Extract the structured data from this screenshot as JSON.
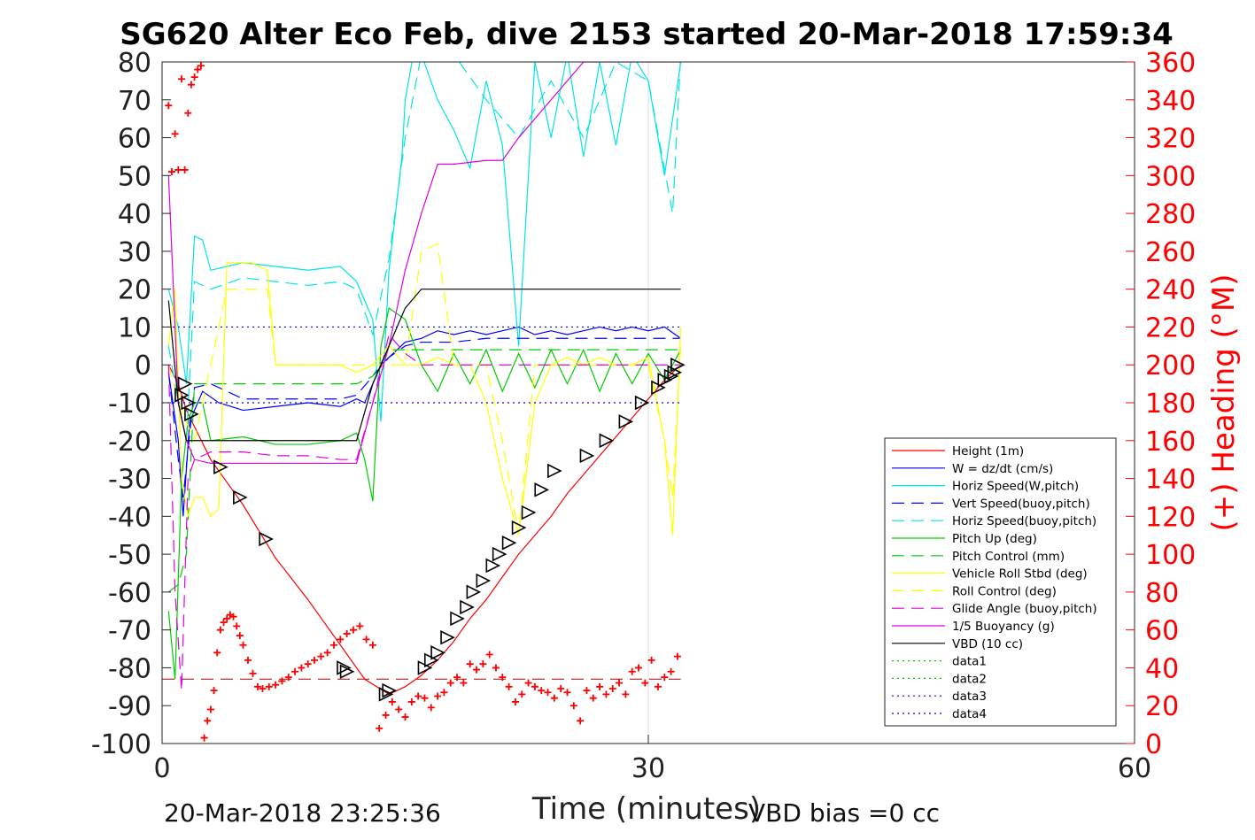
{
  "chart_data": {
    "type": "line",
    "title": "SG620 Alter Eco Feb, dive 2153 started 20-Mar-2018 17:59:34",
    "xlabel": "Time (minutes)",
    "ylabel": "",
    "y2label": "(+) Heading (°M)",
    "xlim": [
      0,
      60
    ],
    "ylim": [
      -100,
      80
    ],
    "y2lim": [
      0,
      360
    ],
    "x_ticks": [
      "0",
      "30",
      "60"
    ],
    "y_ticks": [
      "80",
      "70",
      "60",
      "50",
      "40",
      "30",
      "20",
      "10",
      "0",
      "-10",
      "-20",
      "-30",
      "-40",
      "-50",
      "-60",
      "-70",
      "-80",
      "-90",
      "-100"
    ],
    "y2_ticks": [
      "360",
      "340",
      "320",
      "300",
      "280",
      "260",
      "240",
      "220",
      "200",
      "180",
      "160",
      "140",
      "120",
      "100",
      "80",
      "60",
      "40",
      "20",
      "0"
    ],
    "grid": "x at 30",
    "legend_position": "lower-right",
    "footer_left": "20-Mar-2018 23:25:36",
    "footer_right": "VBD bias =0 cc",
    "series": [
      {
        "name": "Height (1m)",
        "color": "#ff0000",
        "style": "solid",
        "x": [
          0.4,
          1.0,
          1.5,
          3.0,
          5.0,
          7.0,
          9.0,
          11.0,
          12.5,
          14.0,
          15.0,
          16.0,
          17.0,
          18.0,
          19.0,
          20.0,
          21.0,
          22.0,
          23.0,
          24.0,
          25.0,
          26.0,
          27.0,
          28.0,
          29.0,
          30.0,
          31.0,
          32.0
        ],
        "y": [
          0,
          -5,
          -12,
          -25,
          -37,
          -51,
          -62,
          -74,
          -83,
          -87,
          -85,
          -82,
          -78,
          -73,
          -67,
          -62,
          -56,
          -50,
          -45,
          -40,
          -34,
          -29,
          -24,
          -19,
          -14,
          -9,
          -4,
          0
        ]
      },
      {
        "name": "W = dz/dt (cm/s)",
        "color": "#0000ff",
        "style": "solid",
        "x": [
          0.4,
          1.0,
          1.3,
          1.7,
          2.5,
          3.5,
          5,
          7,
          9,
          11,
          12,
          12.5,
          13,
          13.5,
          14,
          15,
          16,
          17,
          18,
          19,
          20,
          21,
          22,
          23,
          24,
          25,
          26,
          27,
          28,
          29,
          30,
          31,
          32
        ],
        "y": [
          -2,
          -20,
          -40,
          -15,
          -7,
          -10,
          -12,
          -11,
          -10,
          -11,
          -9,
          -10,
          -5,
          0,
          2,
          6,
          7,
          9,
          8,
          9,
          8,
          9,
          10,
          8,
          9,
          8,
          9,
          10,
          9,
          10,
          9,
          10,
          7
        ]
      },
      {
        "name": "Horiz Speed(W,pitch)",
        "color": "#00e5e5",
        "style": "solid",
        "x": [
          0.4,
          1.0,
          1.5,
          2.0,
          2.5,
          3.0,
          4.0,
          5.0,
          7,
          9,
          11,
          12,
          13,
          13.5,
          14,
          14.8,
          15,
          15.5,
          16,
          17,
          18,
          19,
          20,
          21,
          22,
          23,
          24,
          25,
          26,
          27,
          28,
          29,
          30,
          31,
          32
        ],
        "y": [
          20,
          10,
          -5,
          34,
          33,
          25,
          26,
          27,
          26,
          25,
          26,
          22,
          12,
          -15,
          25,
          55,
          70,
          82,
          82,
          70,
          62,
          52,
          75,
          58,
          5,
          80,
          60,
          82,
          55,
          80,
          58,
          82,
          75,
          50,
          80
        ]
      },
      {
        "name": "Vert Speed(buoy,pitch)",
        "color": "#0000ff",
        "style": "dashed",
        "x": [
          0.4,
          1.0,
          1.3,
          2.0,
          3.0,
          5,
          7,
          9,
          11,
          12,
          13,
          14,
          15,
          16,
          18,
          20,
          22,
          24,
          26,
          28,
          30,
          32
        ],
        "y": [
          -2,
          -25,
          -35,
          -6,
          -5,
          -9,
          -9,
          -9,
          -9,
          -8,
          -3,
          2,
          5,
          6,
          6,
          7,
          7,
          7,
          7,
          7,
          7,
          7
        ]
      },
      {
        "name": "Horiz Speed(buoy,pitch)",
        "color": "#00e5e5",
        "style": "dashed",
        "x": [
          0.4,
          1.0,
          1.5,
          2.0,
          3.0,
          5,
          7,
          9,
          11,
          12,
          13,
          14,
          15,
          16,
          18,
          20,
          22,
          24,
          26,
          28,
          30,
          31.5,
          32
        ],
        "y": [
          5,
          -10,
          -20,
          22,
          20,
          23,
          22,
          21,
          22,
          20,
          8,
          28,
          60,
          82,
          82,
          70,
          60,
          75,
          60,
          80,
          75,
          40,
          82
        ]
      },
      {
        "name": "Pitch Up (deg)",
        "color": "#00cc00",
        "style": "solid",
        "x": [
          0.4,
          0.8,
          1.2,
          1.6,
          2.0,
          2.5,
          3,
          5,
          7,
          9,
          11,
          12,
          12.5,
          13,
          13.5,
          14,
          15,
          16,
          17,
          18,
          19,
          20,
          21,
          22,
          23,
          24,
          25,
          26,
          27,
          28,
          29,
          30,
          31,
          32
        ],
        "y": [
          -65,
          -83,
          -30,
          -15,
          -10,
          -10,
          -20,
          -19,
          -21,
          -21,
          -20,
          -18,
          -25,
          -36,
          5,
          15,
          12,
          0,
          -7,
          3,
          -5,
          4,
          -7,
          3,
          -6,
          4,
          -5,
          4,
          -7,
          3,
          -5,
          3,
          -4,
          4
        ]
      },
      {
        "name": "Pitch Control (mm)",
        "color": "#00cc00",
        "style": "dashed",
        "x": [
          0.4,
          1.0,
          1.5,
          2.0,
          4,
          8,
          12,
          13,
          14,
          16,
          20,
          24,
          28,
          32
        ],
        "y": [
          -60,
          -58,
          -50,
          -5,
          -5,
          -5,
          -5,
          -3,
          4,
          4,
          4,
          4,
          4,
          4
        ]
      },
      {
        "name": "Vehicle Roll Stbd (deg)",
        "color": "#ffff00",
        "style": "solid",
        "x": [
          0.4,
          0.8,
          1.2,
          1.6,
          2.0,
          2.5,
          3.0,
          3.5,
          4.0,
          5.5,
          6.5,
          7.0,
          8,
          9,
          10,
          11,
          12,
          13,
          14,
          15,
          16,
          17,
          18,
          19,
          20,
          21,
          22,
          23,
          24,
          25,
          26,
          27,
          28,
          29,
          30,
          31,
          31.5,
          32
        ],
        "y": [
          5,
          20,
          -30,
          -40,
          -35,
          -35,
          -40,
          -38,
          27,
          27,
          25,
          0,
          0,
          0,
          0,
          0,
          -2,
          0,
          5,
          0,
          0,
          2,
          0,
          0,
          -10,
          -30,
          -45,
          -10,
          0,
          2,
          0,
          2,
          0,
          0,
          2,
          -20,
          -45,
          10
        ]
      },
      {
        "name": "Roll Control (deg)",
        "color": "#ffff00",
        "style": "dashed",
        "x": [
          0.4,
          1.0,
          1.5,
          2.0,
          4,
          5.5,
          6.5,
          7,
          9,
          11,
          12,
          13,
          14,
          15,
          16,
          17,
          18,
          20,
          21,
          22,
          23,
          24,
          26,
          28,
          30,
          31,
          31.5,
          32
        ],
        "y": [
          0,
          -10,
          -15,
          -20,
          20,
          20,
          20,
          0,
          0,
          0,
          0,
          0,
          0,
          0,
          30,
          32,
          0,
          0,
          -20,
          -45,
          0,
          0,
          0,
          0,
          0,
          -20,
          -35,
          5
        ]
      },
      {
        "name": "Glide Angle (buoy,pitch)",
        "color": "#e000e0",
        "style": "dashed",
        "x": [
          0.4,
          0.8,
          1.2,
          1.6,
          2.0,
          3.0,
          5,
          7,
          9,
          11,
          12,
          13,
          14,
          15,
          16,
          18,
          20,
          22,
          24,
          26,
          28,
          30,
          32
        ],
        "y": [
          0,
          -60,
          -86,
          -30,
          -25,
          -23,
          -23,
          -24,
          -24,
          -25,
          -25,
          -10,
          8,
          3,
          0,
          0,
          0,
          0,
          0,
          0,
          0,
          0,
          0
        ]
      },
      {
        "name": "1/5 Buoyancy (g)",
        "color": "#e000e0",
        "style": "solid",
        "x": [
          0.4,
          1.0,
          1.5,
          2.0,
          3.0,
          6,
          9,
          11.5,
          12,
          13,
          14,
          15,
          16,
          17,
          18,
          20,
          21,
          22,
          24,
          26,
          28,
          30,
          32
        ],
        "y": [
          50,
          -10,
          -20,
          -25,
          -26,
          -26,
          -26,
          -26,
          -26,
          -10,
          5,
          25,
          40,
          53,
          53,
          54,
          54,
          60,
          70,
          80,
          80,
          80,
          80
        ]
      },
      {
        "name": "VBD (10 cc)",
        "color": "#000000",
        "style": "solid",
        "x": [
          0.4,
          1.0,
          1.5,
          2.0,
          3.0,
          6,
          9,
          11.5,
          12,
          13,
          14,
          15,
          16,
          17,
          18,
          20,
          22,
          24,
          26,
          28,
          30,
          32
        ],
        "y": [
          17,
          -10,
          -20,
          -20,
          -20,
          -20,
          -20,
          -20,
          -20,
          -5,
          5,
          15,
          20,
          20,
          20,
          20,
          20,
          20,
          20,
          20,
          20,
          20
        ]
      },
      {
        "name": "data1",
        "color": "#00cc00",
        "style": "dotted",
        "x": [],
        "y": []
      },
      {
        "name": "data2",
        "color": "#00cc00",
        "style": "dotted",
        "x": [],
        "y": []
      },
      {
        "name": "data3",
        "color": "#0000ff",
        "style": "dotted",
        "x": [
          0,
          32
        ],
        "y": [
          10,
          10
        ]
      },
      {
        "name": "data4",
        "color": "#0000ff",
        "style": "dotted",
        "x": [
          0,
          32
        ],
        "y": [
          -10,
          -10
        ]
      }
    ],
    "reference_line": {
      "name": "",
      "color": "#aa0000",
      "style": "dashed",
      "x": [
        0,
        32
      ],
      "y": [
        -83,
        -83
      ]
    },
    "heading_points": {
      "color": "#ff0000",
      "marker": "+",
      "axis": "right",
      "x": [
        0.4,
        0.6,
        0.8,
        1.0,
        1.2,
        1.4,
        1.6,
        1.8,
        2.0,
        2.2,
        2.4,
        2.6,
        2.8,
        3.0,
        3.2,
        3.4,
        3.6,
        3.8,
        4.0,
        4.2,
        4.4,
        4.6,
        4.8,
        5.0,
        5.3,
        5.6,
        5.9,
        6.2,
        6.6,
        7.0,
        7.4,
        7.8,
        8.2,
        8.6,
        9.0,
        9.4,
        9.8,
        10.2,
        10.6,
        11.0,
        11.4,
        11.8,
        12.2,
        12.6,
        13.0,
        13.4,
        13.8,
        14.2,
        14.6,
        15.0,
        15.4,
        15.8,
        16.2,
        16.6,
        17.0,
        17.4,
        17.8,
        18.2,
        18.6,
        19.0,
        19.4,
        19.8,
        20.2,
        20.6,
        21.0,
        21.4,
        21.8,
        22.2,
        22.6,
        23.0,
        23.4,
        23.8,
        24.2,
        24.6,
        25.0,
        25.4,
        25.8,
        26.2,
        26.6,
        27.0,
        27.4,
        27.8,
        28.2,
        28.6,
        29.0,
        29.4,
        29.8,
        30.2,
        30.6,
        31.0,
        31.4,
        31.8
      ],
      "y": [
        337,
        302,
        322,
        303,
        351,
        303,
        333,
        348,
        352,
        356,
        358,
        3,
        12,
        18,
        28,
        48,
        60,
        64,
        66,
        68,
        67,
        62,
        57,
        52,
        44,
        37,
        30,
        29,
        30,
        31,
        33,
        35,
        38,
        40,
        42,
        44,
        46,
        48,
        52,
        55,
        58,
        60,
        62,
        55,
        52,
        8,
        15,
        22,
        18,
        14,
        22,
        25,
        24,
        19,
        25,
        27,
        32,
        35,
        32,
        42,
        39,
        42,
        47,
        40,
        35,
        30,
        22,
        26,
        32,
        30,
        28,
        27,
        24,
        29,
        27,
        20,
        12,
        28,
        24,
        30,
        26,
        29,
        32,
        26,
        38,
        40,
        32,
        44,
        30,
        35,
        38,
        46
      ]
    },
    "dive_markers": {
      "color": "#000000",
      "marker": "triangle",
      "x": [
        1.2,
        1.4,
        1.6,
        1.8,
        3.6,
        4.8,
        6.4,
        11.2,
        11.4,
        13.8,
        14.0,
        16.2,
        16.6,
        17.0,
        17.6,
        18.2,
        18.8,
        19.2,
        19.8,
        20.4,
        20.8,
        21.4,
        22.0,
        22.6,
        23.4,
        24.2,
        26.2,
        27.4,
        28.6,
        29.6,
        30.6,
        31.0,
        31.4,
        31.6,
        31.8
      ],
      "y": [
        -8,
        -5,
        -10,
        -13,
        -27,
        -35,
        -46,
        -80,
        -81,
        -87,
        -86,
        -80,
        -78,
        -76,
        -72,
        -67,
        -64,
        -60,
        -57,
        -53,
        -50,
        -47,
        -43,
        -39,
        -33,
        -28,
        -24,
        -20,
        -15,
        -10,
        -6,
        -4,
        -3,
        -2,
        0
      ]
    }
  }
}
